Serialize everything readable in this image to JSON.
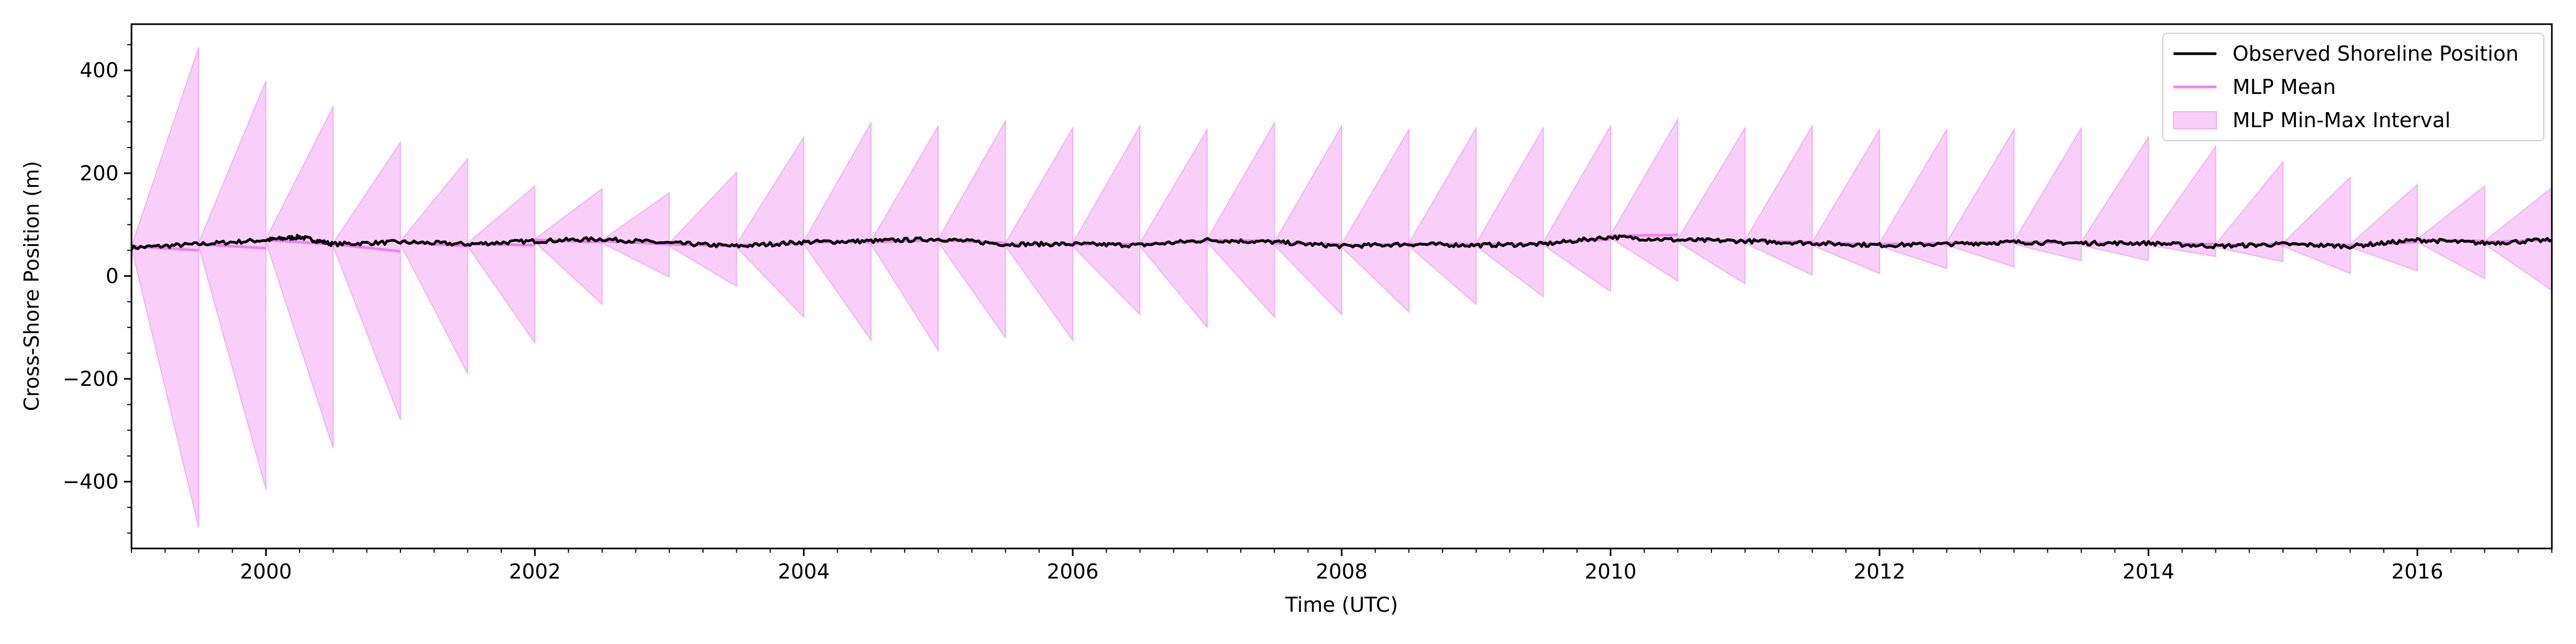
{
  "chart_data": {
    "type": "line",
    "title": "",
    "xlabel": "Time (UTC)",
    "ylabel": "Cross-Shore Position (m)",
    "xlim": [
      1999.0,
      2017.0
    ],
    "ylim": [
      -530,
      490
    ],
    "x_ticks": [
      2000,
      2002,
      2004,
      2006,
      2008,
      2010,
      2012,
      2014,
      2016
    ],
    "x_tick_labels": [
      "2000",
      "2002",
      "2004",
      "2006",
      "2008",
      "2010",
      "2012",
      "2014",
      "2016"
    ],
    "y_ticks": [
      -400,
      -200,
      0,
      200,
      400
    ],
    "y_tick_labels": [
      "−400",
      "−200",
      "0",
      "200",
      "400"
    ],
    "grid": false,
    "legend_placement": "top-right",
    "colors": {
      "observed": "#000000",
      "mean": "#ee82ee",
      "interval_fill": "#ee82ee",
      "interval_edge": "#ee82ee"
    },
    "legend": [
      {
        "key": "observed",
        "label": "Observed Shoreline Position"
      },
      {
        "key": "mean",
        "label": "MLP Mean"
      },
      {
        "key": "interval",
        "label": "MLP Min-Max Interval"
      }
    ],
    "observed": {
      "name": "Observed Shoreline Position",
      "x": [
        1999.0,
        1999.5,
        2000.0,
        2000.25,
        2000.5,
        2001.0,
        2001.5,
        2002.0,
        2002.5,
        2003.0,
        2003.5,
        2004.0,
        2004.5,
        2005.0,
        2005.5,
        2006.0,
        2006.5,
        2007.0,
        2007.5,
        2008.0,
        2008.5,
        2009.0,
        2009.5,
        2010.0,
        2010.5,
        2011.0,
        2011.5,
        2012.0,
        2012.5,
        2013.0,
        2013.5,
        2014.0,
        2014.5,
        2015.0,
        2015.5,
        2016.0,
        2016.5,
        2017.0
      ],
      "y": [
        55,
        62,
        70,
        76,
        62,
        66,
        62,
        68,
        72,
        64,
        58,
        66,
        68,
        72,
        62,
        62,
        60,
        70,
        66,
        58,
        62,
        60,
        62,
        76,
        70,
        68,
        64,
        60,
        62,
        66,
        64,
        64,
        58,
        62,
        58,
        70,
        64,
        70
      ]
    },
    "mlp_segments": [
      {
        "x0": 1999.0,
        "x1": 1999.5,
        "mean": [
          58,
          50
        ],
        "min": [
          55,
          -490
        ],
        "max": [
          58,
          445
        ]
      },
      {
        "x0": 1999.5,
        "x1": 2000.0,
        "mean": [
          62,
          54
        ],
        "min": [
          58,
          -415
        ],
        "max": [
          65,
          380
        ]
      },
      {
        "x0": 2000.0,
        "x1": 2000.5,
        "mean": [
          70,
          62
        ],
        "min": [
          66,
          -335
        ],
        "max": [
          72,
          330
        ]
      },
      {
        "x0": 2000.5,
        "x1": 2001.0,
        "mean": [
          62,
          48
        ],
        "min": [
          58,
          -280
        ],
        "max": [
          64,
          260
        ]
      },
      {
        "x0": 2001.0,
        "x1": 2001.5,
        "mean": [
          66,
          58
        ],
        "min": [
          62,
          -190
        ],
        "max": [
          68,
          228
        ]
      },
      {
        "x0": 2001.5,
        "x1": 2002.0,
        "mean": [
          62,
          60
        ],
        "min": [
          58,
          -130
        ],
        "max": [
          64,
          175
        ]
      },
      {
        "x0": 2002.0,
        "x1": 2002.5,
        "mean": [
          70,
          66
        ],
        "min": [
          66,
          -55
        ],
        "max": [
          72,
          170
        ]
      },
      {
        "x0": 2002.5,
        "x1": 2003.0,
        "mean": [
          68,
          62
        ],
        "min": [
          64,
          -2
        ],
        "max": [
          70,
          162
        ]
      },
      {
        "x0": 2003.0,
        "x1": 2003.5,
        "mean": [
          62,
          58
        ],
        "min": [
          58,
          -20
        ],
        "max": [
          64,
          202
        ]
      },
      {
        "x0": 2003.5,
        "x1": 2004.0,
        "mean": [
          60,
          64
        ],
        "min": [
          56,
          -80
        ],
        "max": [
          62,
          270
        ]
      },
      {
        "x0": 2004.0,
        "x1": 2004.5,
        "mean": [
          66,
          66
        ],
        "min": [
          62,
          -125
        ],
        "max": [
          68,
          298
        ]
      },
      {
        "x0": 2004.5,
        "x1": 2005.0,
        "mean": [
          66,
          70
        ],
        "min": [
          62,
          -145
        ],
        "max": [
          68,
          292
        ]
      },
      {
        "x0": 2005.0,
        "x1": 2005.5,
        "mean": [
          70,
          64
        ],
        "min": [
          66,
          -120
        ],
        "max": [
          72,
          302
        ]
      },
      {
        "x0": 2005.5,
        "x1": 2006.0,
        "mean": [
          62,
          62
        ],
        "min": [
          58,
          -125
        ],
        "max": [
          64,
          288
        ]
      },
      {
        "x0": 2006.0,
        "x1": 2006.5,
        "mean": [
          62,
          62
        ],
        "min": [
          58,
          -75
        ],
        "max": [
          64,
          292
        ]
      },
      {
        "x0": 2006.5,
        "x1": 2007.0,
        "mean": [
          62,
          68
        ],
        "min": [
          58,
          -100
        ],
        "max": [
          64,
          285
        ]
      },
      {
        "x0": 2007.0,
        "x1": 2007.5,
        "mean": [
          70,
          68
        ],
        "min": [
          66,
          -80
        ],
        "max": [
          72,
          298
        ]
      },
      {
        "x0": 2007.5,
        "x1": 2008.0,
        "mean": [
          64,
          62
        ],
        "min": [
          60,
          -75
        ],
        "max": [
          66,
          292
        ]
      },
      {
        "x0": 2008.0,
        "x1": 2008.5,
        "mean": [
          60,
          62
        ],
        "min": [
          56,
          -70
        ],
        "max": [
          62,
          285
        ]
      },
      {
        "x0": 2008.5,
        "x1": 2009.0,
        "mean": [
          62,
          62
        ],
        "min": [
          58,
          -55
        ],
        "max": [
          64,
          288
        ]
      },
      {
        "x0": 2009.0,
        "x1": 2009.5,
        "mean": [
          62,
          62
        ],
        "min": [
          58,
          -40
        ],
        "max": [
          64,
          288
        ]
      },
      {
        "x0": 2009.5,
        "x1": 2010.0,
        "mean": [
          64,
          72
        ],
        "min": [
          60,
          -30
        ],
        "max": [
          66,
          292
        ]
      },
      {
        "x0": 2010.0,
        "x1": 2010.5,
        "mean": [
          78,
          80
        ],
        "min": [
          74,
          -10
        ],
        "max": [
          80,
          305
        ]
      },
      {
        "x0": 2010.5,
        "x1": 2011.0,
        "mean": [
          70,
          68
        ],
        "min": [
          66,
          -15
        ],
        "max": [
          72,
          288
        ]
      },
      {
        "x0": 2011.0,
        "x1": 2011.5,
        "mean": [
          68,
          66
        ],
        "min": [
          64,
          2
        ],
        "max": [
          70,
          292
        ]
      },
      {
        "x0": 2011.5,
        "x1": 2012.0,
        "mean": [
          64,
          62
        ],
        "min": [
          60,
          5
        ],
        "max": [
          66,
          285
        ]
      },
      {
        "x0": 2012.0,
        "x1": 2012.5,
        "mean": [
          62,
          64
        ],
        "min": [
          58,
          15
        ],
        "max": [
          64,
          285
        ]
      },
      {
        "x0": 2012.5,
        "x1": 2013.0,
        "mean": [
          64,
          66
        ],
        "min": [
          60,
          18
        ],
        "max": [
          66,
          285
        ]
      },
      {
        "x0": 2013.0,
        "x1": 2013.5,
        "mean": [
          66,
          64
        ],
        "min": [
          62,
          30
        ],
        "max": [
          68,
          288
        ]
      },
      {
        "x0": 2013.5,
        "x1": 2014.0,
        "mean": [
          64,
          64
        ],
        "min": [
          60,
          30
        ],
        "max": [
          66,
          270
        ]
      },
      {
        "x0": 2014.0,
        "x1": 2014.5,
        "mean": [
          64,
          62
        ],
        "min": [
          60,
          38
        ],
        "max": [
          66,
          252
        ]
      },
      {
        "x0": 2014.5,
        "x1": 2015.0,
        "mean": [
          60,
          62
        ],
        "min": [
          56,
          28
        ],
        "max": [
          62,
          222
        ]
      },
      {
        "x0": 2015.0,
        "x1": 2015.5,
        "mean": [
          62,
          60
        ],
        "min": [
          58,
          5
        ],
        "max": [
          64,
          192
        ]
      },
      {
        "x0": 2015.5,
        "x1": 2016.0,
        "mean": [
          60,
          66
        ],
        "min": [
          56,
          10
        ],
        "max": [
          62,
          178
        ]
      },
      {
        "x0": 2016.0,
        "x1": 2016.5,
        "mean": [
          70,
          68
        ],
        "min": [
          66,
          -5
        ],
        "max": [
          72,
          175
        ]
      },
      {
        "x0": 2016.5,
        "x1": 2017.0,
        "mean": [
          66,
          70
        ],
        "min": [
          62,
          -28
        ],
        "max": [
          68,
          172
        ]
      }
    ]
  }
}
